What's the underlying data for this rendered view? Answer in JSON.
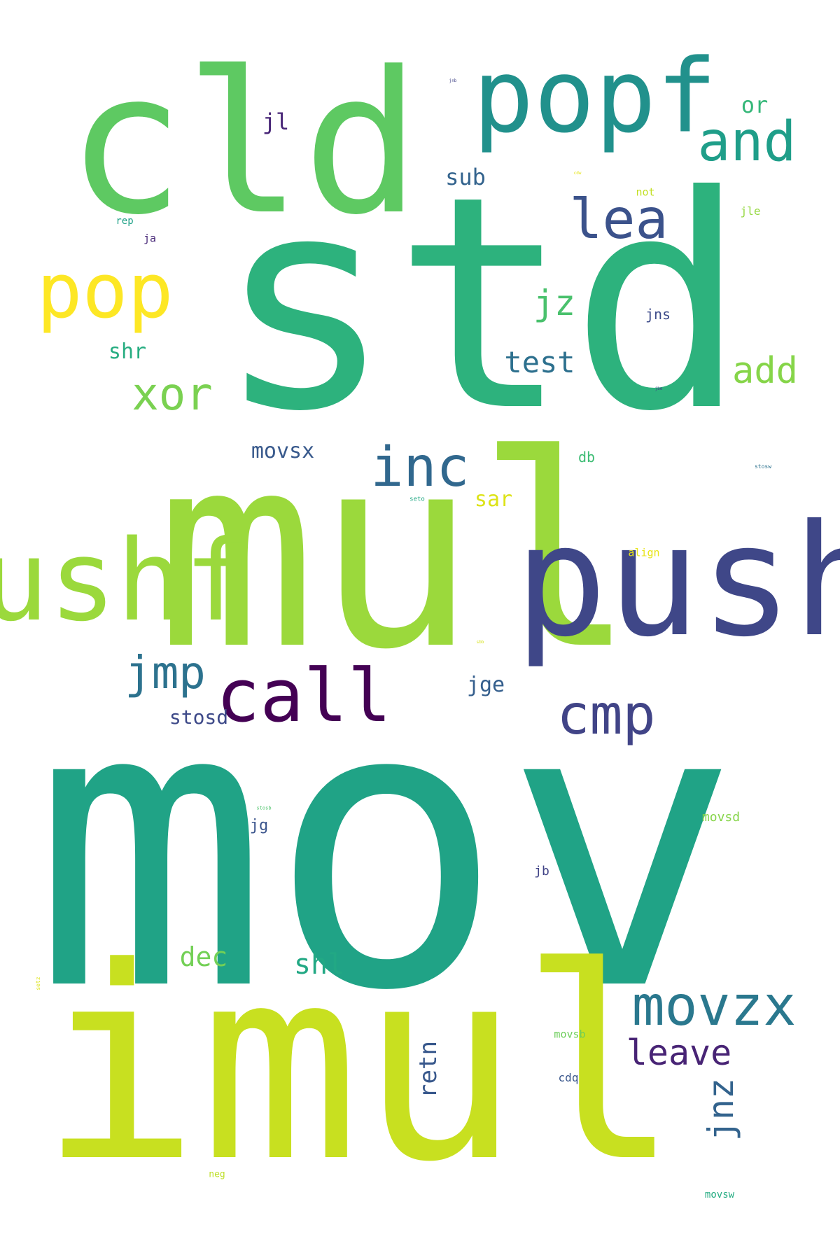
{
  "colors": {
    "background": "#ffffff",
    "palette": "viridis"
  },
  "words": [
    {
      "id": "mov",
      "text": "mov",
      "color": "#20a386"
    },
    {
      "id": "std",
      "text": "std",
      "color": "#2db27d"
    },
    {
      "id": "mul",
      "text": "mul",
      "color": "#9bd93c"
    },
    {
      "id": "imul",
      "text": "imul",
      "color": "#c8e020"
    },
    {
      "id": "cld",
      "text": "cld",
      "color": "#5ec962"
    },
    {
      "id": "push",
      "text": "push",
      "color": "#3f4788"
    },
    {
      "id": "pushf",
      "text": "pushf",
      "color": "#9bd93c"
    },
    {
      "id": "popf",
      "text": "popf",
      "color": "#21918c"
    },
    {
      "id": "pop",
      "text": "pop",
      "color": "#fde725"
    },
    {
      "id": "call",
      "text": "call",
      "color": "#440154"
    },
    {
      "id": "and",
      "text": "and",
      "color": "#1f9e89"
    },
    {
      "id": "lea",
      "text": "lea",
      "color": "#3b528b"
    },
    {
      "id": "cmp",
      "text": "cmp",
      "color": "#414487"
    },
    {
      "id": "inc",
      "text": "inc",
      "color": "#31688e"
    },
    {
      "id": "movzx",
      "text": "movzx",
      "color": "#2a788e"
    },
    {
      "id": "jmp",
      "text": "jmp",
      "color": "#2c728e"
    },
    {
      "id": "xor",
      "text": "xor",
      "color": "#7ad151"
    },
    {
      "id": "add",
      "text": "add",
      "color": "#86d549"
    },
    {
      "id": "leave",
      "text": "leave",
      "color": "#482475"
    },
    {
      "id": "jnz",
      "text": "jnz",
      "color": "#33638d",
      "rotated": true
    },
    {
      "id": "jz",
      "text": "jz",
      "color": "#4ac16d"
    },
    {
      "id": "test",
      "text": "test",
      "color": "#2d708e"
    },
    {
      "id": "shl",
      "text": "shl",
      "color": "#22a884"
    },
    {
      "id": "dec",
      "text": "dec",
      "color": "#73d056"
    },
    {
      "id": "retn",
      "text": "retn",
      "color": "#38588c",
      "rotated": true
    },
    {
      "id": "sub",
      "text": "sub",
      "color": "#33638d"
    },
    {
      "id": "or",
      "text": "or",
      "color": "#35b779"
    },
    {
      "id": "jl",
      "text": "jl",
      "color": "#482677"
    },
    {
      "id": "shr",
      "text": "shr",
      "color": "#27ad81"
    },
    {
      "id": "sar",
      "text": "sar",
      "color": "#dde318"
    },
    {
      "id": "movsx",
      "text": "movsx",
      "color": "#38598c"
    },
    {
      "id": "jge",
      "text": "jge",
      "color": "#355f8d"
    },
    {
      "id": "stosd",
      "text": "stosd",
      "color": "#3e4a89"
    },
    {
      "id": "jg",
      "text": "jg",
      "color": "#3a548c"
    },
    {
      "id": "movsd",
      "text": "movsd",
      "color": "#86d549"
    },
    {
      "id": "jns",
      "text": "jns",
      "color": "#3e4c8a"
    },
    {
      "id": "db",
      "text": "db",
      "color": "#3dbc74"
    },
    {
      "id": "jb",
      "text": "jb",
      "color": "#414487"
    },
    {
      "id": "cdq",
      "text": "cdq",
      "color": "#39568c"
    },
    {
      "id": "movsb",
      "text": "movsb",
      "color": "#6ccd5a"
    },
    {
      "id": "align",
      "text": "align",
      "color": "#e7e419"
    },
    {
      "id": "jle",
      "text": "jle",
      "color": "#95d840"
    },
    {
      "id": "not",
      "text": "not",
      "color": "#c2df23"
    },
    {
      "id": "rep",
      "text": "rep",
      "color": "#1fa187"
    },
    {
      "id": "ja",
      "text": "ja",
      "color": "#482878"
    },
    {
      "id": "movsw",
      "text": "movsw",
      "color": "#25ac82"
    },
    {
      "id": "neg",
      "text": "neg",
      "color": "#bddf26"
    },
    {
      "id": "seto",
      "text": "seto",
      "color": "#22a884"
    },
    {
      "id": "stosw",
      "text": "stosw",
      "color": "#2c728e"
    },
    {
      "id": "stosb",
      "text": "stosb",
      "color": "#4ec36b"
    },
    {
      "id": "jb2",
      "text": "jnb",
      "color": "#404387"
    },
    {
      "id": "jbe",
      "text": "jbe",
      "color": "#404387"
    },
    {
      "id": "cdw",
      "text": "cdw",
      "color": "#e5e419"
    },
    {
      "id": "sub2",
      "text": "sbb",
      "color": "#d5e21a"
    },
    {
      "id": "setz",
      "text": "setz",
      "color": "#dde318",
      "rotated": true
    }
  ]
}
